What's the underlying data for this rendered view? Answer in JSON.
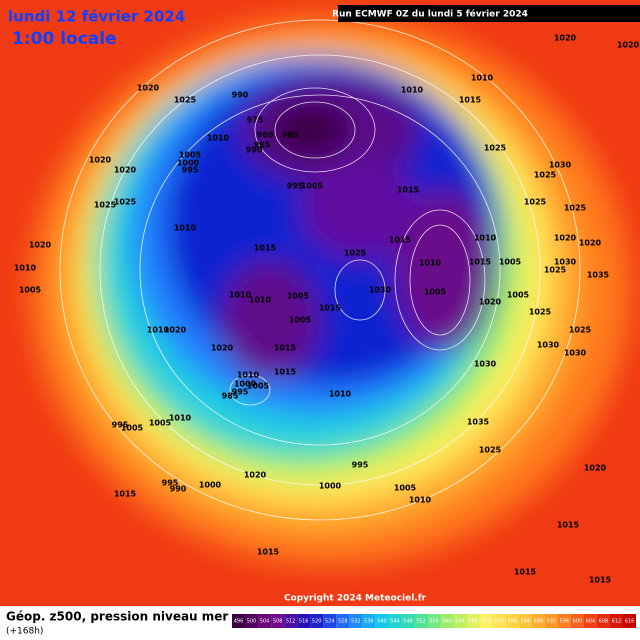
{
  "header": {
    "date": "lundi 12 février 2024",
    "time": "1:00 locale",
    "run": "Run ECMWF 0Z du lundi 5 février 2024"
  },
  "copyright": "Copyright 2024 Meteociel.fr",
  "footer": {
    "title": "Géop. z500, pression niveau mer",
    "lead": "(+168h)"
  },
  "colorbar": {
    "labels": [
      496,
      500,
      504,
      508,
      512,
      516,
      520,
      524,
      528,
      532,
      536,
      540,
      544,
      548,
      552,
      556,
      560,
      564,
      568,
      572,
      576,
      580,
      584,
      588,
      592,
      596,
      600,
      604,
      608,
      612,
      616
    ]
  },
  "isobar_labels": [
    "1020",
    "1020",
    "1020",
    "1025",
    "990",
    "1010",
    "1010",
    "1015",
    "975",
    "980",
    "980",
    "985",
    "990",
    "1010",
    "1005",
    "1000",
    "995",
    "1020",
    "1020",
    "1025",
    "1030",
    "1025",
    "995",
    "1005",
    "1015",
    "1025",
    "1025",
    "1025",
    "1025",
    "1020",
    "1010",
    "1015",
    "1025",
    "1015",
    "1010",
    "1020",
    "1020",
    "1010",
    "1010",
    "1015",
    "1005",
    "1025",
    "1030",
    "1035",
    "1005",
    "1010",
    "1010",
    "1005",
    "1030",
    "1005",
    "1020",
    "1005",
    "1015",
    "1025",
    "1005",
    "1020",
    "1010",
    "1020",
    "1015",
    "1030",
    "1025",
    "1030",
    "1030",
    "1010",
    "1000",
    "995",
    "1005",
    "985",
    "1015",
    "1010",
    "1010",
    "1005",
    "995",
    "1005",
    "1035",
    "1025",
    "995",
    "1020",
    "995",
    "990",
    "1000",
    "1000",
    "1005",
    "1010",
    "1015",
    "1020",
    "1015",
    "1015",
    "1015",
    "1015"
  ]
}
